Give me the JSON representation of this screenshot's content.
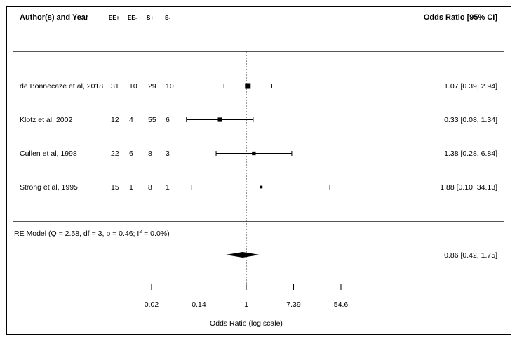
{
  "chart_data": {
    "type": "forest",
    "header": {
      "study": "Author(s) and Year",
      "cols": [
        "EE+",
        "EE-",
        "S+",
        "S-"
      ],
      "effect": "Odds Ratio [95% CI]"
    },
    "studies": [
      {
        "label": "de Bonnecaze et al, 2018",
        "counts": [
          "31",
          "10",
          "29",
          "10"
        ],
        "or": 1.07,
        "lo": 0.39,
        "hi": 2.94,
        "text": "1.07 [0.39,  2.94]",
        "weight": 1.0
      },
      {
        "label": "Klotz et al, 2002",
        "counts": [
          "12",
          "4",
          "55",
          "6"
        ],
        "or": 0.33,
        "lo": 0.08,
        "hi": 1.34,
        "text": "0.33 [0.08,  1.34]",
        "weight": 0.7
      },
      {
        "label": "Cullen et al, 1998",
        "counts": [
          "22",
          "6",
          "8",
          "3"
        ],
        "or": 1.38,
        "lo": 0.28,
        "hi": 6.84,
        "text": "1.38 [0.28,  6.84]",
        "weight": 0.55
      },
      {
        "label": "Strong et al, 1995",
        "counts": [
          "15",
          "1",
          "8",
          "1"
        ],
        "or": 1.88,
        "lo": 0.1,
        "hi": 34.13,
        "text": "1.88 [0.10, 34.13]",
        "weight": 0.3
      }
    ],
    "summary": {
      "label_pre": "RE Model (Q = 2.58, df = 3, p = 0.46; I",
      "label_sup": "2",
      "label_post": " = 0.0%)",
      "or": 0.86,
      "lo": 0.42,
      "hi": 1.75,
      "text": "0.86 [0.42,  1.75]"
    },
    "x_ticks": [
      {
        "value": 0.0183,
        "label": "0.02"
      },
      {
        "value": 0.1353,
        "label": "0.14"
      },
      {
        "value": 1,
        "label": "1"
      },
      {
        "value": 7.389,
        "label": "7.39"
      },
      {
        "value": 54.6,
        "label": "54.6"
      }
    ],
    "xlabel": "Odds Ratio (log scale)",
    "reference_line": 1,
    "scale": "log"
  }
}
